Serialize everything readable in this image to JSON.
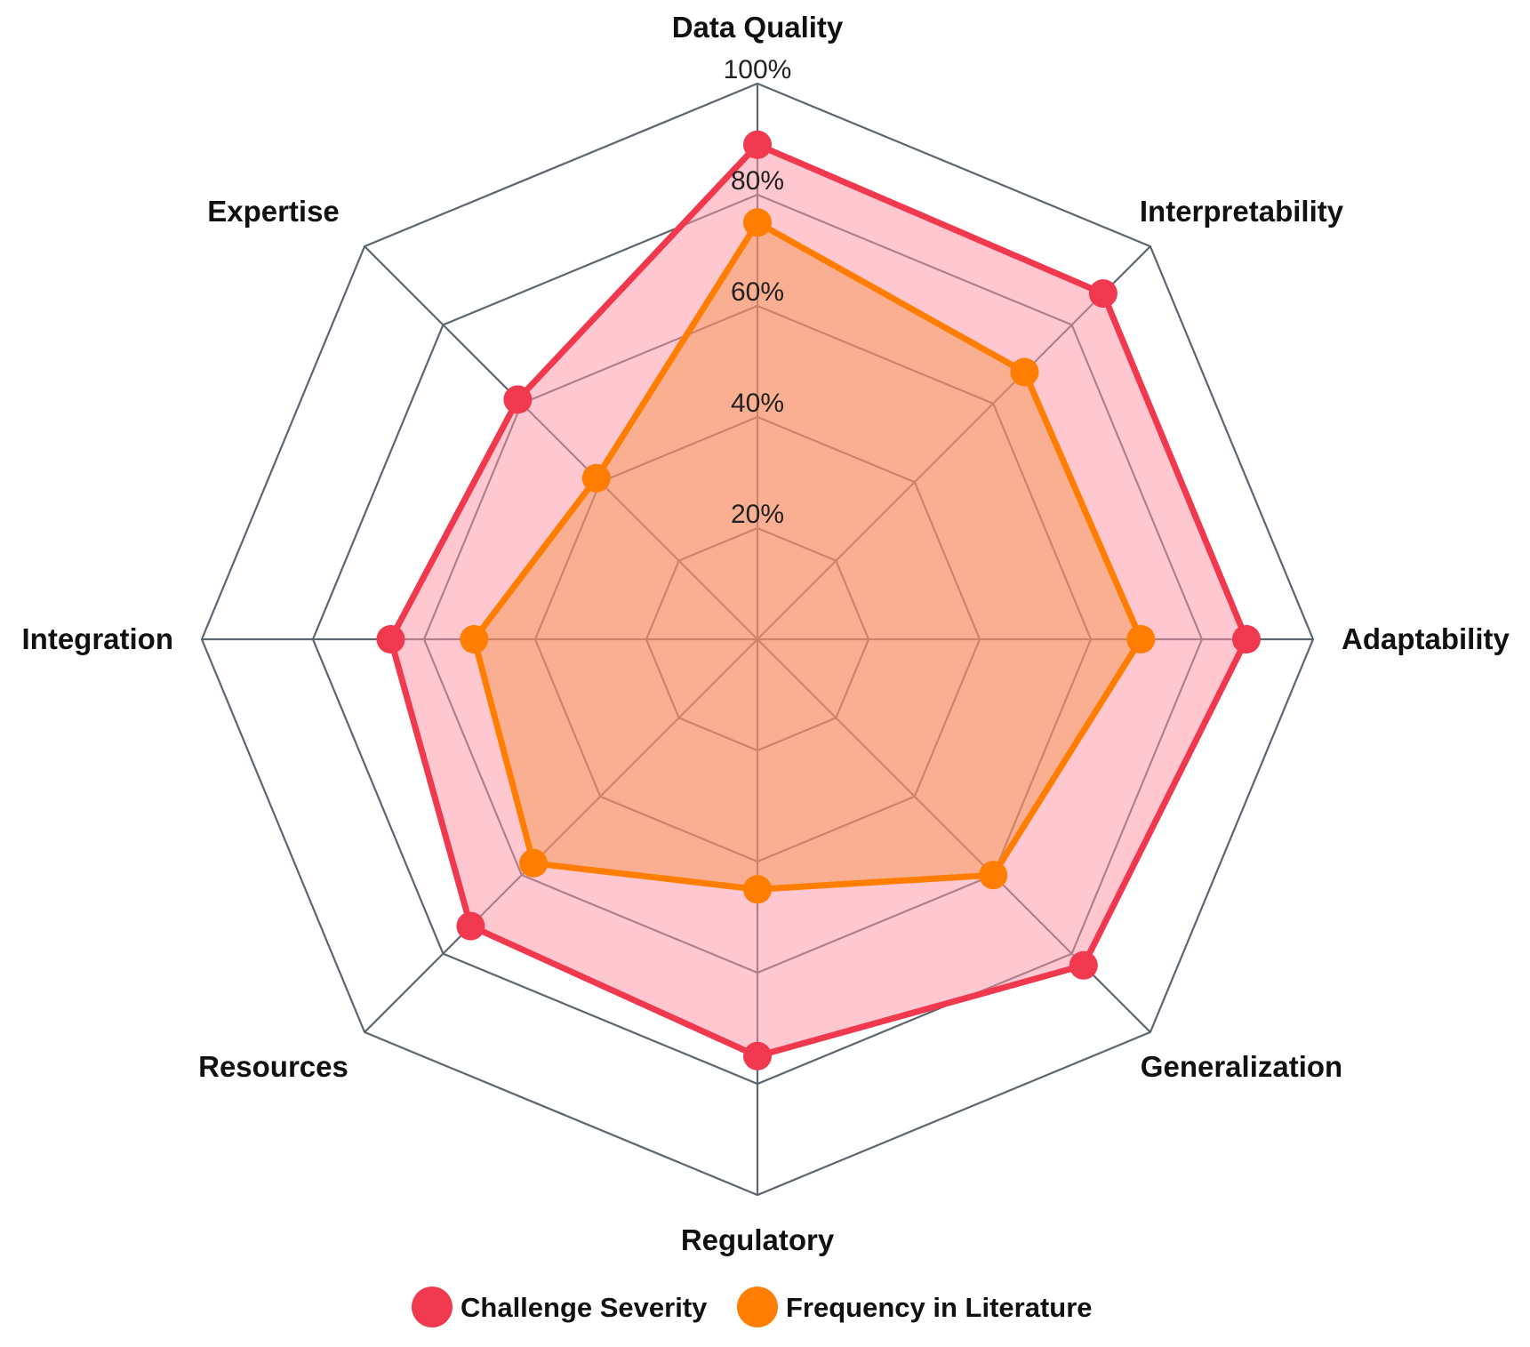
{
  "chart_data": {
    "type": "radar",
    "axes": [
      "Data Quality",
      "Interpretability",
      "Adaptability",
      "Generalization",
      "Regulatory",
      "Resources",
      "Integration",
      "Expertise"
    ],
    "ticks": [
      "20%",
      "40%",
      "60%",
      "80%",
      "100%"
    ],
    "tick_values": [
      20,
      40,
      60,
      80,
      100
    ],
    "rmax": 100,
    "series": [
      {
        "name": "Challenge Severity",
        "values": [
          89,
          88,
          88,
          83,
          75,
          73,
          66,
          61
        ],
        "color": "#f0384f",
        "fill": "rgba(255, 150, 165, 0.52)"
      },
      {
        "name": "Frequency in Literature",
        "values": [
          75,
          68,
          69,
          60,
          45,
          57,
          51,
          41
        ],
        "color": "#ff7d00",
        "fill": "rgba(245, 140, 60, 0.42)"
      }
    ],
    "legend_position": "bottom",
    "grid": true
  }
}
